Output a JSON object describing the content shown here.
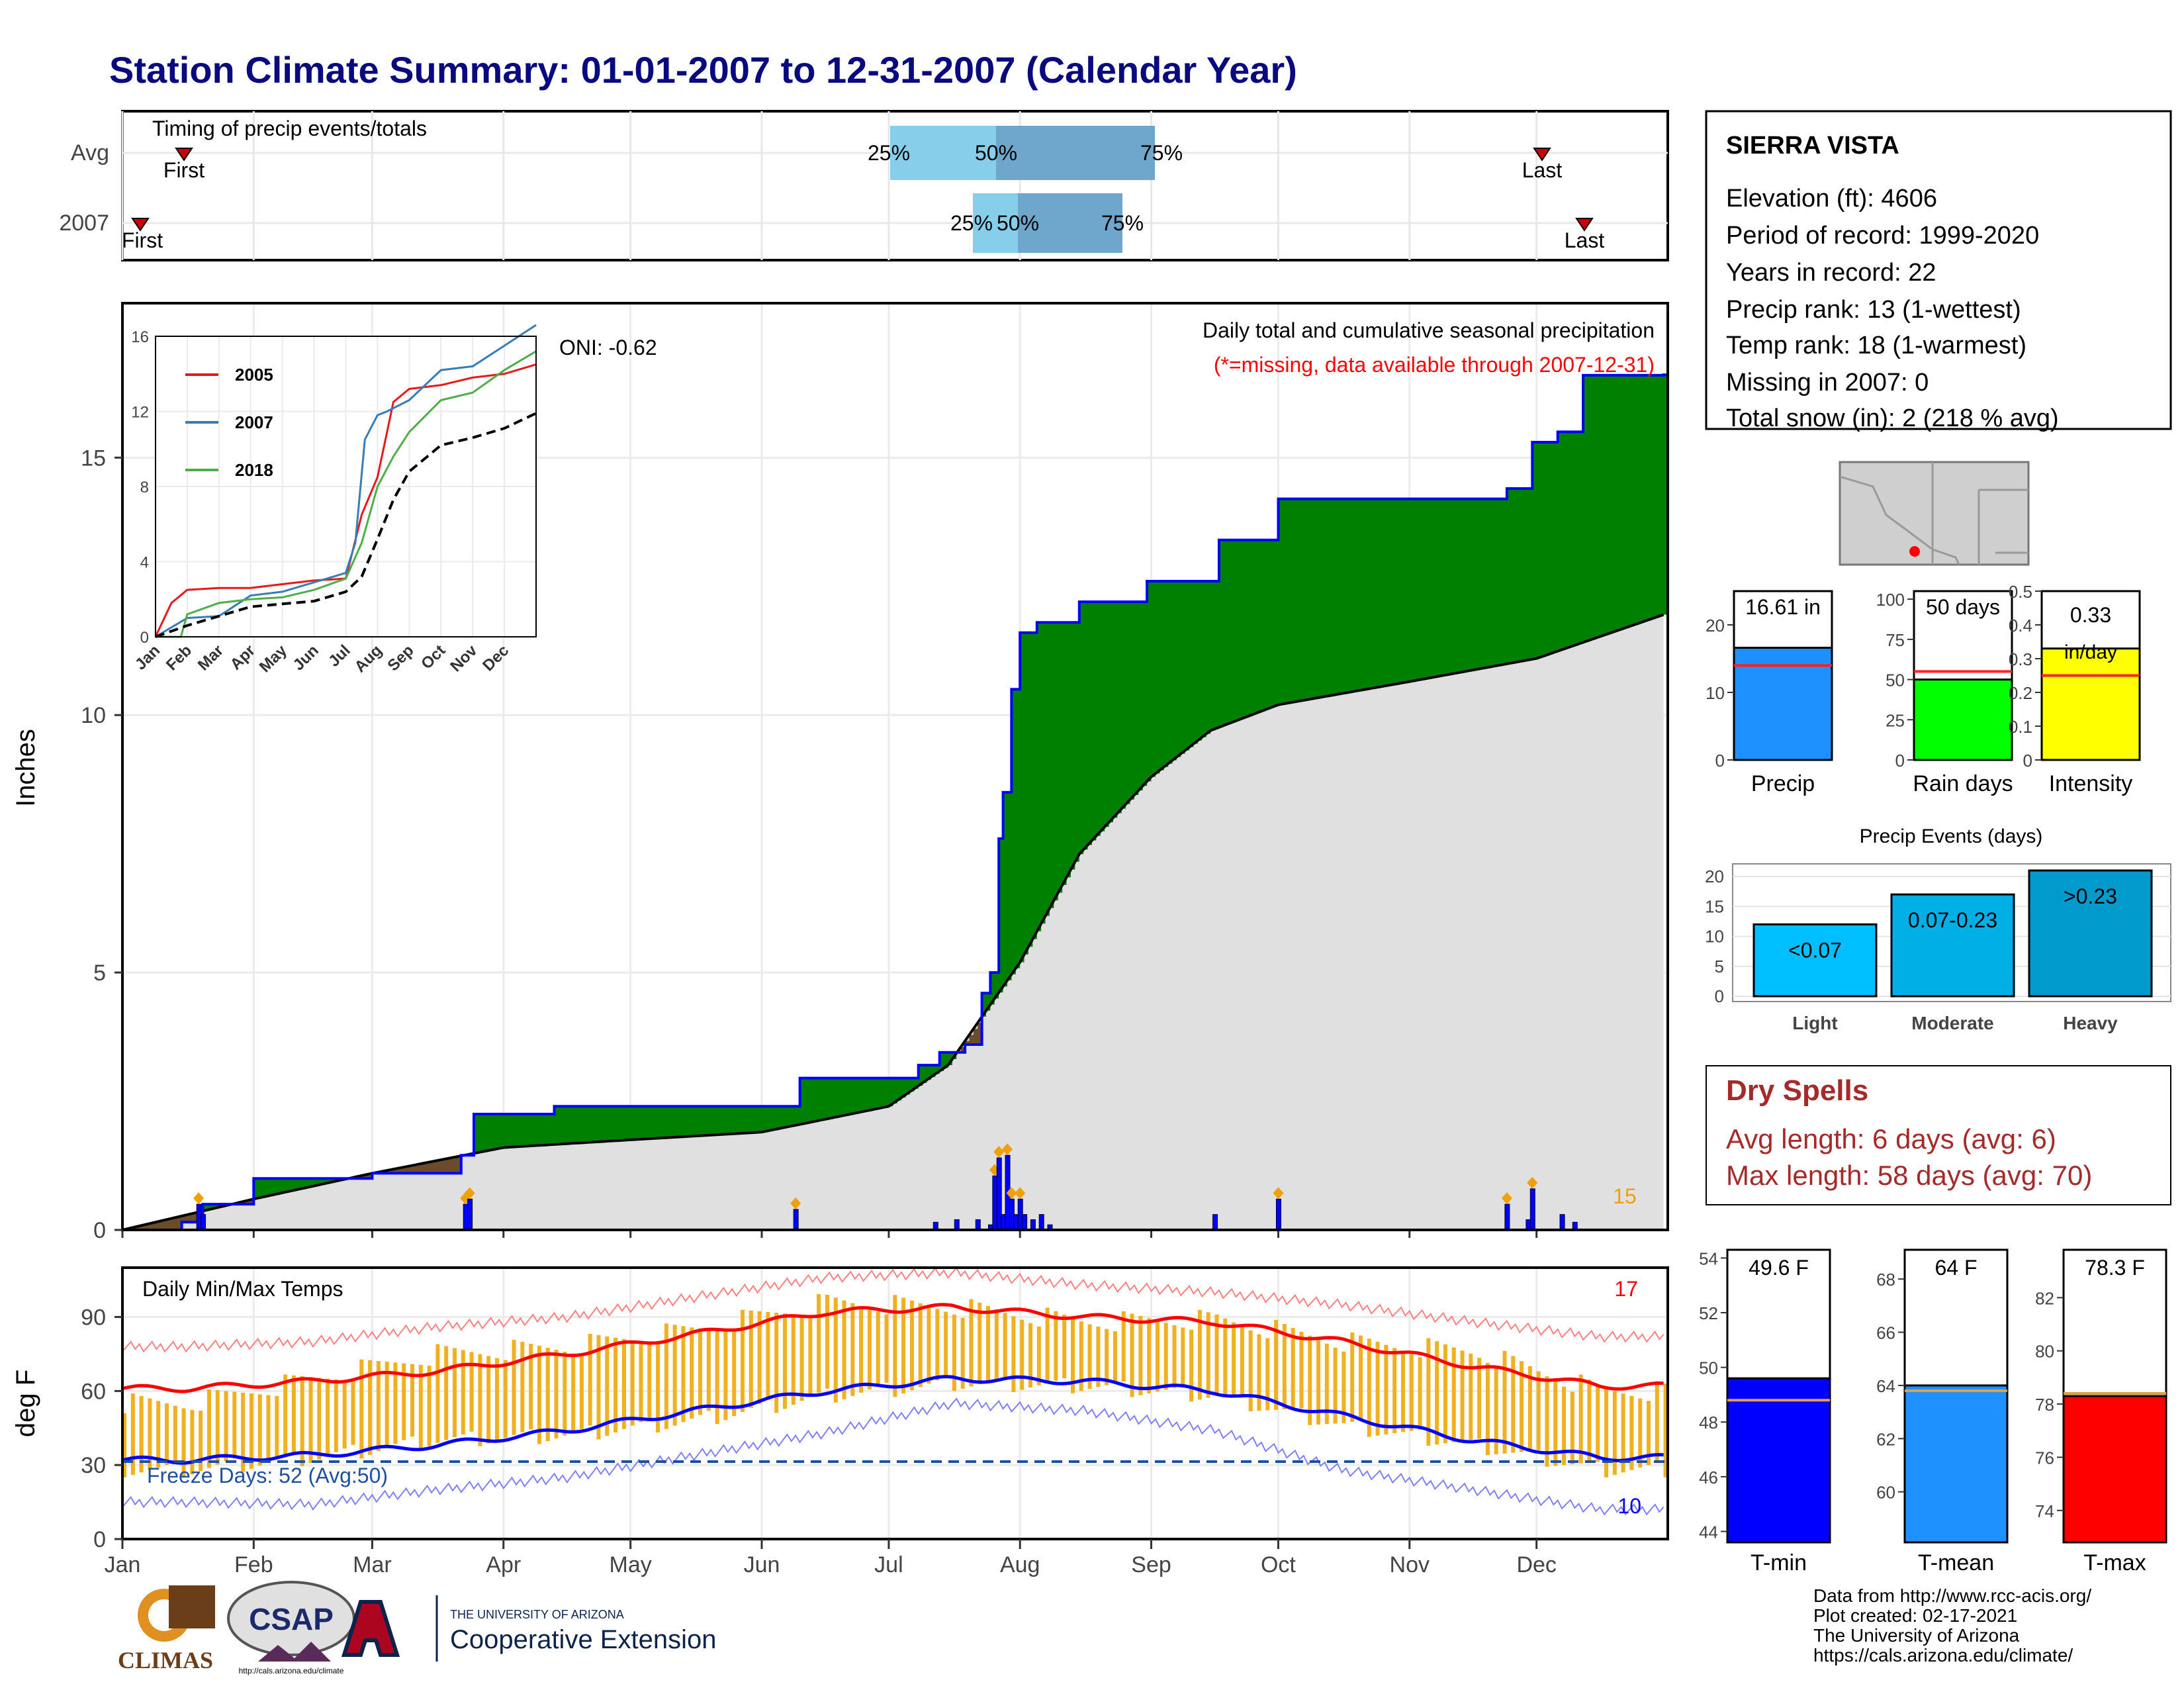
{
  "page_title": "Station Climate Summary: 01-01-2007 to 12-31-2007 (Calendar Year)",
  "colors": {
    "title": "#0a0a80",
    "precip_surplus": "#008000",
    "precip_deficit": "#6b4b2a",
    "avg_area": "#e0e0e0",
    "daily_bar": "#0000ff",
    "tmax_line": "#ff0000",
    "tmin_line": "#0000ff",
    "temp_range": "#f0b020",
    "q_light": "#87ceeb",
    "q_dark": "#6fa6cc",
    "dry_spells": "#a52a2a",
    "series_2005": "#e41a1c",
    "series_2007": "#377eb8",
    "series_2018": "#4daf4a"
  },
  "timing_panel": {
    "label": "Timing of precip events/totals",
    "rows": [
      "Avg",
      "2007"
    ],
    "avg": {
      "first": "First",
      "last": "Last",
      "q25": "25%",
      "q50": "50%",
      "q75": "75%"
    },
    "y2007": {
      "first": "First",
      "last": "Last",
      "q25": "25%",
      "q50": "50%",
      "q75": "75%"
    }
  },
  "precip_panel": {
    "ylabel": "Inches",
    "oni": "ONI: -0.62",
    "heading": "Daily total and cumulative seasonal precipitation",
    "note": "(*=missing, data available through 2007-12-31)",
    "count_label": "15"
  },
  "inset": {
    "months": [
      "Jan",
      "Feb",
      "Mar",
      "Apr",
      "May",
      "Jun",
      "Jul",
      "Aug",
      "Sep",
      "Oct",
      "Nov",
      "Dec"
    ],
    "legend": [
      "2005",
      "2007",
      "2018"
    ]
  },
  "temp_panel": {
    "ylabel": "deg F",
    "title": "Daily Min/Max Temps",
    "max_count": "17",
    "min_count": "10",
    "freeze": "Freeze Days: 52 (Avg:50)"
  },
  "months": [
    "Jan",
    "Feb",
    "Mar",
    "Apr",
    "May",
    "Jun",
    "Jul",
    "Aug",
    "Sep",
    "Oct",
    "Nov",
    "Dec"
  ],
  "station": {
    "name": "SIERRA VISTA",
    "lines": [
      "Elevation (ft): 4606",
      "Period of record: 1999-2020",
      "Years in record: 22",
      "Precip rank: 13 (1-wettest)",
      "Temp rank: 18 (1-warmest)",
      "Missing in 2007: 0",
      "Total snow (in): 2 (218 % avg)"
    ]
  },
  "mini_bars": [
    {
      "label": "Precip",
      "value_text": "16.61 in",
      "color": "#1e90ff"
    },
    {
      "label": "Rain days",
      "value_text": "50 days",
      "color": "#00ff00"
    },
    {
      "label": "Intensity",
      "value_text": "0.33 in/day",
      "color": "#ffff00"
    }
  ],
  "events": {
    "title": "Precip Events (days)",
    "bars": [
      {
        "label": "Light",
        "text": "<0.07",
        "color": "#00bfff"
      },
      {
        "label": "Moderate",
        "text": "0.07-0.23",
        "color": "#00afe6"
      },
      {
        "label": "Heavy",
        "text": ">0.23",
        "color": "#009acd"
      }
    ]
  },
  "dry_spells": {
    "title": "Dry Spells",
    "avg": "Avg length: 6 days (avg: 6)",
    "max": "Max length: 58 days (avg: 70)"
  },
  "temp_bars": [
    {
      "label": "T-min",
      "value_text": "49.6 F",
      "color": "#0000ff"
    },
    {
      "label": "T-mean",
      "value_text": "64 F",
      "color": "#1e90ff"
    },
    {
      "label": "T-max",
      "value_text": "78.3 F",
      "color": "#ff0000"
    }
  ],
  "logos": {
    "climas": "CLIMAS",
    "csap": "CSAP",
    "csap_url": "http://cals.arizona.edu/climate",
    "ua_small": "THE UNIVERSITY OF ARIZONA",
    "ua_big": "Cooperative Extension"
  },
  "footer": [
    "Data from http://www.rcc-acis.org/",
    "Plot created: 02-17-2021",
    "The University of Arizona",
    "https://cals.arizona.edu/climate/"
  ],
  "chart_data": [
    {
      "type": "area",
      "title": "Daily total and cumulative seasonal precipitation",
      "xlabel": "",
      "ylabel": "Inches",
      "ylim": [
        0,
        18
      ],
      "yticks": [
        0,
        5,
        10,
        15
      ],
      "series": [
        {
          "name": "Cumulative 2007",
          "x": [
            "2007-01-01",
            "2007-01-15",
            "2007-01-20",
            "2007-02-01",
            "2007-03-01",
            "2007-03-22",
            "2007-03-25",
            "2007-04-13",
            "2007-06-10",
            "2007-07-01",
            "2007-07-08",
            "2007-07-13",
            "2007-07-19",
            "2007-07-23",
            "2007-07-25",
            "2007-07-27",
            "2007-07-28",
            "2007-07-30",
            "2007-08-01",
            "2007-08-05",
            "2007-08-15",
            "2007-08-31",
            "2007-09-17",
            "2007-10-01",
            "2007-11-24",
            "2007-11-30",
            "2007-12-06",
            "2007-12-12",
            "2007-12-31"
          ],
          "values": [
            0,
            0.15,
            0.5,
            1.0,
            1.1,
            1.45,
            2.25,
            2.4,
            2.95,
            2.95,
            3.2,
            3.45,
            3.6,
            4.6,
            5.0,
            7.6,
            8.5,
            10.5,
            11.6,
            11.8,
            12.2,
            12.6,
            13.4,
            14.2,
            14.4,
            15.3,
            15.5,
            16.6,
            16.61
          ]
        },
        {
          "name": "Average cumulative",
          "x": [
            "2007-01-01",
            "2007-02-01",
            "2007-03-01",
            "2007-04-01",
            "2007-05-01",
            "2007-06-01",
            "2007-07-01",
            "2007-07-15",
            "2007-08-01",
            "2007-08-15",
            "2007-09-01",
            "2007-09-15",
            "2007-10-01",
            "2007-11-01",
            "2007-12-01",
            "2007-12-31"
          ],
          "values": [
            0,
            0.6,
            1.1,
            1.6,
            1.75,
            1.9,
            2.4,
            3.2,
            5.2,
            7.3,
            8.8,
            9.7,
            10.2,
            10.65,
            11.1,
            11.95
          ]
        }
      ],
      "daily_totals": {
        "x": [
          "2007-01-19",
          "2007-01-20",
          "2007-03-23",
          "2007-03-24",
          "2007-06-09",
          "2007-07-12",
          "2007-07-17",
          "2007-07-22",
          "2007-07-25",
          "2007-07-26",
          "2007-07-27",
          "2007-07-28",
          "2007-07-29",
          "2007-07-30",
          "2007-07-31",
          "2007-08-01",
          "2007-08-02",
          "2007-08-04",
          "2007-08-06",
          "2007-08-08",
          "2007-09-16",
          "2007-10-01",
          "2007-11-24",
          "2007-11-29",
          "2007-11-30",
          "2007-12-07",
          "2007-12-10"
        ],
        "values": [
          0.5,
          0.3,
          0.5,
          0.6,
          0.4,
          0.15,
          0.2,
          0.2,
          0.1,
          1.05,
          1.4,
          0.3,
          1.45,
          0.6,
          0.3,
          0.6,
          0.3,
          0.2,
          0.3,
          0.1,
          0.3,
          0.6,
          0.5,
          0.2,
          0.8,
          0.3,
          0.15
        ]
      }
    },
    {
      "type": "line",
      "title": "",
      "xlabel": "",
      "ylabel": "",
      "xlim_label": [
        "Jan",
        "Dec"
      ],
      "ylim": [
        0,
        16
      ],
      "yticks": [
        0,
        4,
        8,
        12,
        16
      ],
      "series": [
        {
          "name": "2005",
          "x": [
            0,
            0.5,
            1,
            2,
            3,
            4,
            5,
            6,
            6.5,
            7,
            7.5,
            8,
            9,
            10,
            11,
            12
          ],
          "values": [
            0,
            1.8,
            2.5,
            2.6,
            2.6,
            2.8,
            3.0,
            3.1,
            6.5,
            8.5,
            12.5,
            13.2,
            13.4,
            13.8,
            14.0,
            14.5
          ]
        },
        {
          "name": "2007",
          "x": [
            0,
            0.5,
            1,
            2,
            3,
            4,
            5,
            6,
            6.3,
            6.6,
            7,
            7.3,
            8,
            9,
            10,
            11,
            12
          ],
          "values": [
            0,
            0.5,
            1.0,
            1.1,
            2.2,
            2.4,
            2.9,
            3.4,
            5.0,
            10.5,
            11.8,
            12.0,
            12.6,
            14.2,
            14.4,
            15.5,
            16.6
          ]
        },
        {
          "name": "2018",
          "x": [
            0,
            0.8,
            1,
            2,
            3,
            4,
            5,
            6,
            6.5,
            7,
            7.5,
            8,
            9,
            10,
            11,
            12
          ],
          "values": [
            0,
            0,
            1.2,
            1.8,
            2.0,
            2.1,
            2.5,
            3.1,
            5.0,
            8.0,
            9.6,
            10.9,
            12.6,
            13.0,
            14.2,
            15.2
          ]
        },
        {
          "name": "Average",
          "x": [
            0,
            1,
            2,
            3,
            4,
            5,
            6,
            6.5,
            7,
            7.5,
            8,
            9,
            10,
            11,
            12
          ],
          "values": [
            0,
            0.6,
            1.1,
            1.6,
            1.75,
            1.9,
            2.4,
            3.2,
            5.2,
            7.3,
            8.8,
            10.2,
            10.6,
            11.1,
            11.9
          ]
        }
      ]
    },
    {
      "type": "line",
      "title": "Daily Min/Max Temps",
      "xlabel": "",
      "ylabel": "deg F",
      "ylim": [
        0,
        110
      ],
      "yticks": [
        0,
        30,
        60,
        90
      ],
      "categories": [
        "Jan",
        "Feb",
        "Mar",
        "Apr",
        "May",
        "Jun",
        "Jul",
        "Aug",
        "Sep",
        "Oct",
        "Nov",
        "Dec"
      ],
      "series": [
        {
          "name": "Avg max",
          "values": [
            61,
            64,
            68,
            75,
            83,
            92,
            94,
            90,
            88,
            80,
            70,
            62
          ]
        },
        {
          "name": "Avg min",
          "values": [
            32,
            34,
            38,
            44,
            52,
            60,
            65,
            64,
            60,
            50,
            40,
            33
          ]
        },
        {
          "name": "Record high",
          "values": [
            78,
            80,
            86,
            90,
            98,
            106,
            108,
            103,
            100,
            95,
            88,
            82
          ]
        },
        {
          "name": "Record low",
          "values": [
            15,
            14,
            20,
            25,
            34,
            43,
            55,
            52,
            44,
            28,
            20,
            12
          ]
        },
        {
          "name": "2007 max",
          "values": [
            55,
            65,
            75,
            78,
            85,
            96,
            94,
            88,
            89,
            80,
            76,
            60
          ]
        },
        {
          "name": "2007 min",
          "values": [
            28,
            33,
            40,
            42,
            48,
            58,
            63,
            62,
            58,
            46,
            38,
            28
          ]
        }
      ],
      "freeze_line": 32
    },
    {
      "type": "bar",
      "title": "",
      "categories": [
        "Precip",
        "Rain days",
        "Intensity"
      ],
      "values": [
        16.61,
        50,
        0.33
      ],
      "averages": [
        14,
        55,
        0.25
      ],
      "ylims": [
        [
          0,
          25
        ],
        [
          0,
          105
        ],
        [
          0,
          0.5
        ]
      ]
    },
    {
      "type": "bar",
      "title": "Precip Events (days)",
      "categories": [
        "Light",
        "Moderate",
        "Heavy"
      ],
      "values": [
        12,
        17,
        21
      ],
      "ylim": [
        0,
        21
      ],
      "yticks": [
        0,
        5,
        10,
        15,
        20
      ]
    },
    {
      "type": "bar",
      "title": "",
      "categories": [
        "T-min",
        "T-mean",
        "T-max"
      ],
      "values": [
        49.6,
        64,
        78.3
      ],
      "averages": [
        48.8,
        63.8,
        78.4
      ],
      "ylims": [
        [
          43.6,
          54.3
        ],
        [
          58.1,
          69.1
        ],
        [
          72.8,
          83.8
        ]
      ]
    }
  ]
}
